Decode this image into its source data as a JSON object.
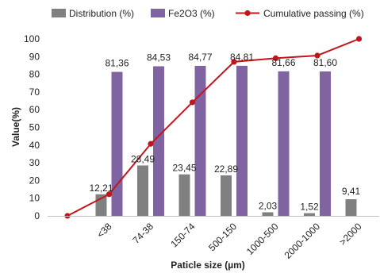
{
  "chart_data": {
    "type": "bar",
    "xlabel": "Paticle size (µm)",
    "ylabel": "Value(%)",
    "ylim": [
      0,
      100
    ],
    "yticks": [
      0,
      10,
      20,
      30,
      40,
      50,
      60,
      70,
      80,
      90,
      100
    ],
    "categories": [
      "<38",
      "74-38",
      "150-74",
      "500-150",
      "1000-500",
      "2000-1000",
      ">2000"
    ],
    "series": [
      {
        "name": "Distribution (%)",
        "type": "bar",
        "color": "#808080",
        "values": [
          12.21,
          28.49,
          23.45,
          22.89,
          2.03,
          1.52,
          9.41
        ],
        "labels": [
          "12,21",
          "28,49",
          "23,45",
          "22,89",
          "2,03",
          "1,52",
          "9,41"
        ]
      },
      {
        "name": "Fe2O3 (%)",
        "type": "bar",
        "color": "#8064a2",
        "values": [
          81.36,
          84.53,
          84.77,
          84.81,
          81.66,
          81.6,
          null
        ],
        "labels": [
          "81,36",
          "84,53",
          "84,77",
          "84,81",
          "81,66",
          "81,60",
          ""
        ]
      },
      {
        "name": "Cumulative passing (%)",
        "type": "line",
        "color": "#c0161c",
        "x": [
          0,
          1,
          2,
          3,
          4,
          5,
          6,
          7
        ],
        "values": [
          0,
          12.21,
          40.7,
          64.15,
          87.04,
          89.07,
          90.59,
          100
        ]
      }
    ],
    "legend_position": "top",
    "grid": false
  }
}
